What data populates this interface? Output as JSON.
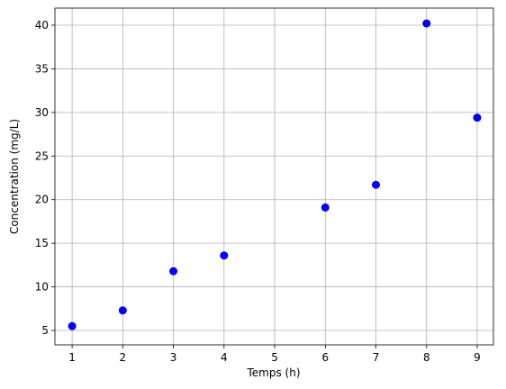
{
  "chart_data": {
    "type": "scatter",
    "x_label": "Temps (h)",
    "y_label": "Concentration (mg/L)",
    "series": [
      {
        "color": "#0000ff",
        "x": [
          1,
          2,
          3,
          4,
          6,
          7,
          8,
          9
        ],
        "values": [
          5.5,
          7.3,
          11.8,
          13.6,
          19.1,
          21.7,
          40.2,
          29.4
        ]
      }
    ],
    "xlim": [
      0.66,
      9.32
    ],
    "ylim": [
      3.35,
      41.96
    ],
    "xticks": [
      1,
      2,
      3,
      4,
      5,
      6,
      7,
      8,
      9
    ],
    "yticks": [
      5,
      10,
      15,
      20,
      25,
      30,
      35,
      40
    ],
    "grid": true
  }
}
